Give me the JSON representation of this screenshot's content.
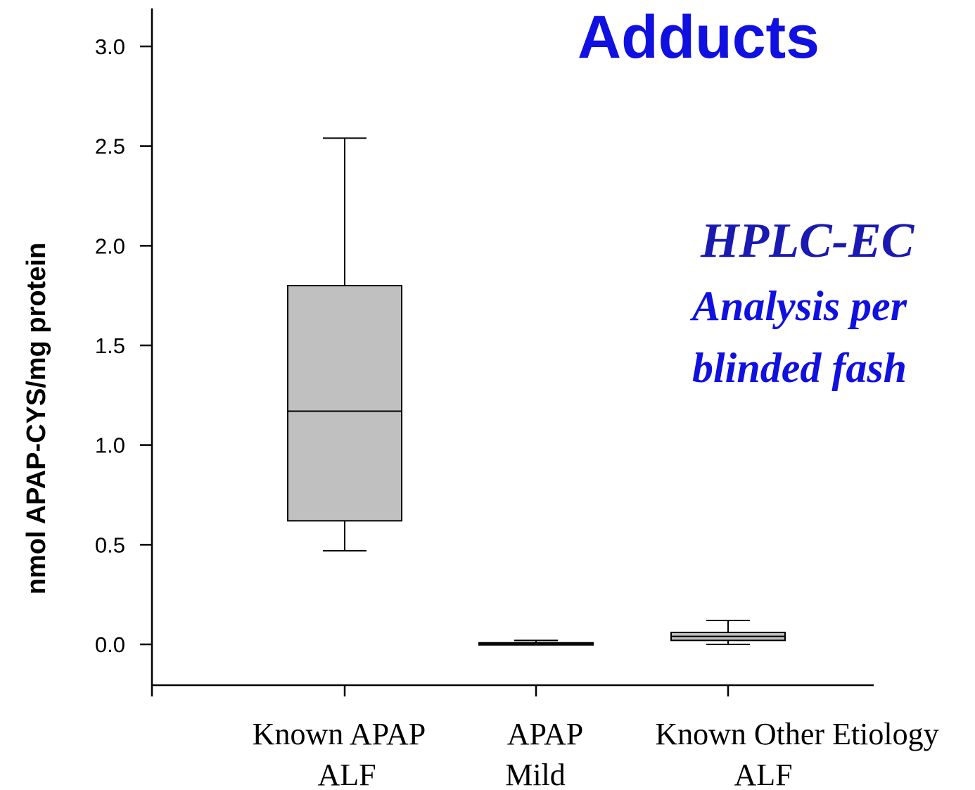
{
  "colors": {
    "title": "#1010e0",
    "annotation_main": "#1a1ab0",
    "annotation_sub": "#1010e0",
    "box_fill": "#c0c0c0",
    "axis": "#000000"
  },
  "chart_data": {
    "type": "box",
    "title": "Adducts",
    "ylabel": "nmol APAP-CYS/mg protein",
    "xlabel": "",
    "ylim": [
      -0.2,
      3.2
    ],
    "yticks": [
      "0.0",
      "0.5",
      "1.0",
      "1.5",
      "2.0",
      "2.5",
      "3.0"
    ],
    "grid": false,
    "categories": [
      {
        "line1": "Known APAP",
        "line2": "ALF"
      },
      {
        "line1": "APAP",
        "line2": "Mild"
      },
      {
        "line1": "Known Other Etiology",
        "line2": "ALF"
      }
    ],
    "boxes": [
      {
        "whisker_low": 0.47,
        "q1": 0.62,
        "median": 1.17,
        "q3": 1.8,
        "whisker_high": 2.54
      },
      {
        "whisker_low": 0.0,
        "q1": 0.003,
        "median": 0.005,
        "q3": 0.008,
        "whisker_high": 0.02
      },
      {
        "whisker_low": 0.0,
        "q1": 0.02,
        "median": 0.04,
        "q3": 0.06,
        "whisker_high": 0.12
      }
    ],
    "annotations": [
      "HPLC-EC",
      "Analysis per",
      "blinded fash"
    ]
  }
}
